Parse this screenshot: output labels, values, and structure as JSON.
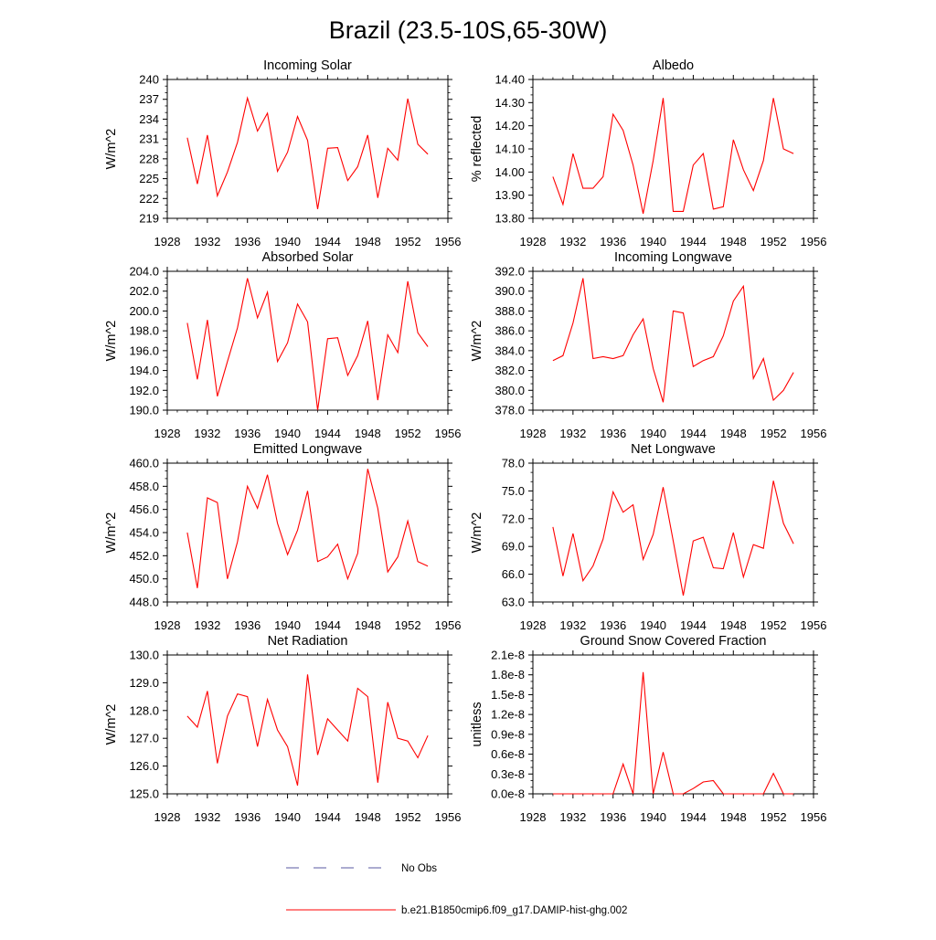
{
  "title": "Brazil (23.5-10S,65-30W)",
  "legend": {
    "no_obs_label": "No Obs",
    "model_label": "b.e21.B1850cmip6.f09_g17.DAMIP-hist-ghg.002",
    "no_obs_color": "#5a5aa0",
    "model_color": "#ff0000"
  },
  "colors": {
    "series": "#ff0000",
    "axis": "#000000"
  },
  "chart_data": [
    {
      "type": "line",
      "title": "Incoming Solar",
      "ylabel": "W/m^2",
      "xlim": [
        1928,
        1956
      ],
      "xticks": [
        "1928",
        "1932",
        "1936",
        "1940",
        "1944",
        "1948",
        "1952",
        "1956"
      ],
      "ylim": [
        219,
        240
      ],
      "yticks": [
        "219",
        "222",
        "225",
        "228",
        "231",
        "234",
        "237",
        "240"
      ],
      "series": [
        {
          "x": [
            1930,
            1931,
            1932,
            1933,
            1934,
            1935,
            1936,
            1937,
            1938,
            1939,
            1940,
            1941,
            1942,
            1943,
            1944,
            1945,
            1946,
            1947,
            1948,
            1949,
            1950,
            1951,
            1952,
            1953,
            1954
          ],
          "y": [
            231.2,
            224.2,
            231.6,
            222.4,
            226.0,
            230.5,
            237.2,
            232.2,
            234.9,
            226.1,
            229.0,
            234.4,
            230.8,
            220.4,
            229.6,
            229.7,
            224.7,
            226.8,
            231.6,
            222.1,
            229.6,
            227.8,
            237.1,
            230.2,
            228.7
          ]
        }
      ]
    },
    {
      "type": "line",
      "title": "Albedo",
      "ylabel": "% reflected",
      "xlim": [
        1928,
        1956
      ],
      "xticks": [
        "1928",
        "1932",
        "1936",
        "1940",
        "1944",
        "1948",
        "1952",
        "1956"
      ],
      "ylim": [
        13.8,
        14.4
      ],
      "yticks": [
        "13.80",
        "13.90",
        "14.00",
        "14.10",
        "14.20",
        "14.30",
        "14.40"
      ],
      "series": [
        {
          "x": [
            1930,
            1931,
            1932,
            1933,
            1934,
            1935,
            1936,
            1937,
            1938,
            1939,
            1940,
            1941,
            1942,
            1943,
            1944,
            1945,
            1946,
            1947,
            1948,
            1949,
            1950,
            1951,
            1952,
            1953,
            1954
          ],
          "y": [
            13.98,
            13.86,
            14.08,
            13.93,
            13.93,
            13.98,
            14.25,
            14.18,
            14.03,
            13.82,
            14.05,
            14.32,
            13.83,
            13.83,
            14.03,
            14.08,
            13.84,
            13.85,
            14.14,
            14.01,
            13.92,
            14.05,
            14.32,
            14.1,
            14.08
          ]
        }
      ]
    },
    {
      "type": "line",
      "title": "Absorbed Solar",
      "ylabel": "W/m^2",
      "xlim": [
        1928,
        1956
      ],
      "xticks": [
        "1928",
        "1932",
        "1936",
        "1940",
        "1944",
        "1948",
        "1952",
        "1956"
      ],
      "ylim": [
        190,
        204
      ],
      "yticks": [
        "190.0",
        "192.0",
        "194.0",
        "196.0",
        "198.0",
        "200.0",
        "202.0",
        "204.0"
      ],
      "series": [
        {
          "x": [
            1930,
            1931,
            1932,
            1933,
            1934,
            1935,
            1936,
            1937,
            1938,
            1939,
            1940,
            1941,
            1942,
            1943,
            1944,
            1945,
            1946,
            1947,
            1948,
            1949,
            1950,
            1951,
            1952,
            1953,
            1954
          ],
          "y": [
            198.8,
            193.1,
            199.1,
            191.4,
            194.9,
            198.3,
            203.3,
            199.3,
            201.9,
            194.9,
            196.8,
            200.7,
            198.9,
            190.0,
            197.2,
            197.3,
            193.5,
            195.5,
            199.0,
            191.0,
            197.6,
            195.8,
            203.0,
            197.8,
            196.4
          ]
        }
      ]
    },
    {
      "type": "line",
      "title": "Incoming Longwave",
      "ylabel": "W/m^2",
      "xlim": [
        1928,
        1956
      ],
      "xticks": [
        "1928",
        "1932",
        "1936",
        "1940",
        "1944",
        "1948",
        "1952",
        "1956"
      ],
      "ylim": [
        378,
        392
      ],
      "yticks": [
        "378.0",
        "380.0",
        "382.0",
        "384.0",
        "386.0",
        "388.0",
        "390.0",
        "392.0"
      ],
      "series": [
        {
          "x": [
            1930,
            1931,
            1932,
            1933,
            1934,
            1935,
            1936,
            1937,
            1938,
            1939,
            1940,
            1941,
            1942,
            1943,
            1944,
            1945,
            1946,
            1947,
            1948,
            1949,
            1950,
            1951,
            1952,
            1953,
            1954
          ],
          "y": [
            383.0,
            383.5,
            386.8,
            391.3,
            383.2,
            383.4,
            383.2,
            383.5,
            385.6,
            387.2,
            382.2,
            378.8,
            388.0,
            387.8,
            382.4,
            383.0,
            383.4,
            385.5,
            389.0,
            390.5,
            381.2,
            383.2,
            379.0,
            380.0,
            381.8
          ]
        }
      ]
    },
    {
      "type": "line",
      "title": "Emitted Longwave",
      "ylabel": "W/m^2",
      "xlim": [
        1928,
        1956
      ],
      "xticks": [
        "1928",
        "1932",
        "1936",
        "1940",
        "1944",
        "1948",
        "1952",
        "1956"
      ],
      "ylim": [
        448,
        460
      ],
      "yticks": [
        "448.0",
        "450.0",
        "452.0",
        "454.0",
        "456.0",
        "458.0",
        "460.0"
      ],
      "series": [
        {
          "x": [
            1930,
            1931,
            1932,
            1933,
            1934,
            1935,
            1936,
            1937,
            1938,
            1939,
            1940,
            1941,
            1942,
            1943,
            1944,
            1945,
            1946,
            1947,
            1948,
            1949,
            1950,
            1951,
            1952,
            1953,
            1954
          ],
          "y": [
            454.0,
            449.2,
            457.0,
            456.6,
            450.0,
            453.2,
            458.0,
            456.1,
            459.0,
            454.8,
            452.1,
            454.2,
            457.6,
            451.5,
            451.9,
            453.0,
            450.0,
            452.2,
            459.5,
            456.1,
            450.6,
            451.9,
            455.0,
            451.5,
            451.1
          ]
        }
      ]
    },
    {
      "type": "line",
      "title": "Net Longwave",
      "ylabel": "W/m^2",
      "xlim": [
        1928,
        1956
      ],
      "xticks": [
        "1928",
        "1932",
        "1936",
        "1940",
        "1944",
        "1948",
        "1952",
        "1956"
      ],
      "ylim": [
        63,
        78
      ],
      "yticks": [
        "63.0",
        "66.0",
        "69.0",
        "72.0",
        "75.0",
        "78.0"
      ],
      "series": [
        {
          "x": [
            1930,
            1931,
            1932,
            1933,
            1934,
            1935,
            1936,
            1937,
            1938,
            1939,
            1940,
            1941,
            1942,
            1943,
            1944,
            1945,
            1946,
            1947,
            1948,
            1949,
            1950,
            1951,
            1952,
            1953,
            1954
          ],
          "y": [
            71.1,
            65.8,
            70.4,
            65.3,
            66.9,
            69.8,
            74.9,
            72.7,
            73.5,
            67.6,
            70.3,
            75.4,
            69.6,
            63.7,
            69.6,
            70.0,
            66.7,
            66.6,
            70.5,
            65.7,
            69.2,
            68.8,
            76.1,
            71.5,
            69.3
          ]
        }
      ]
    },
    {
      "type": "line",
      "title": "Net Radiation",
      "ylabel": "W/m^2",
      "xlim": [
        1928,
        1956
      ],
      "xticks": [
        "1928",
        "1932",
        "1936",
        "1940",
        "1944",
        "1948",
        "1952",
        "1956"
      ],
      "ylim": [
        125,
        130
      ],
      "yticks": [
        "125.0",
        "126.0",
        "127.0",
        "128.0",
        "129.0",
        "130.0"
      ],
      "series": [
        {
          "x": [
            1930,
            1931,
            1932,
            1933,
            1934,
            1935,
            1936,
            1937,
            1938,
            1939,
            1940,
            1941,
            1942,
            1943,
            1944,
            1945,
            1946,
            1947,
            1948,
            1949,
            1950,
            1951,
            1952,
            1953,
            1954
          ],
          "y": [
            127.8,
            127.4,
            128.7,
            126.1,
            127.8,
            128.6,
            128.5,
            126.7,
            128.4,
            127.3,
            126.7,
            125.3,
            129.3,
            126.4,
            127.7,
            127.3,
            126.9,
            128.8,
            128.5,
            125.4,
            128.3,
            127.0,
            126.9,
            126.3,
            127.1
          ]
        }
      ]
    },
    {
      "type": "line",
      "title": "Ground Snow Covered Fraction",
      "ylabel": "unitless",
      "xlim": [
        1928,
        1956
      ],
      "xticks": [
        "1928",
        "1932",
        "1936",
        "1940",
        "1944",
        "1948",
        "1952",
        "1956"
      ],
      "ylim": [
        0,
        2.1e-08
      ],
      "yticks": [
        "0.0e-8",
        "0.3e-8",
        "0.6e-8",
        "0.9e-8",
        "1.2e-8",
        "1.5e-8",
        "1.8e-8",
        "2.1e-8"
      ],
      "series": [
        {
          "x": [
            1930,
            1931,
            1932,
            1933,
            1934,
            1935,
            1936,
            1937,
            1938,
            1939,
            1940,
            1941,
            1942,
            1943,
            1944,
            1945,
            1946,
            1947,
            1948,
            1949,
            1950,
            1951,
            1952,
            1953,
            1954
          ],
          "y": [
            0,
            0,
            0,
            0,
            0,
            0,
            0,
            4.5e-09,
            0,
            1.84e-08,
            0,
            6.3e-09,
            0,
            0,
            8e-10,
            1.8e-09,
            2e-09,
            0,
            0,
            0,
            0,
            0,
            3.1e-09,
            0,
            0
          ]
        }
      ]
    }
  ]
}
